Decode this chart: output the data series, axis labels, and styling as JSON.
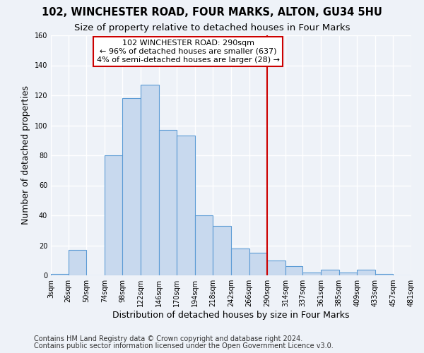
{
  "title1": "102, WINCHESTER ROAD, FOUR MARKS, ALTON, GU34 5HU",
  "title2": "Size of property relative to detached houses in Four Marks",
  "xlabel": "Distribution of detached houses by size in Four Marks",
  "ylabel": "Number of detached properties",
  "footer1": "Contains HM Land Registry data © Crown copyright and database right 2024.",
  "footer2": "Contains public sector information licensed under the Open Government Licence v3.0.",
  "bin_edges": [
    3,
    26,
    50,
    74,
    98,
    122,
    146,
    170,
    194,
    218,
    242,
    266,
    290,
    314,
    337,
    361,
    385,
    409,
    433,
    457,
    481
  ],
  "counts": [
    1,
    17,
    0,
    80,
    118,
    127,
    97,
    93,
    40,
    33,
    18,
    15,
    10,
    6,
    2,
    4,
    2,
    4,
    1,
    0
  ],
  "bar_facecolor": "#c8d9ee",
  "bar_edgecolor": "#5b9bd5",
  "vline_x": 290,
  "vline_color": "#cc0000",
  "annotation_title": "102 WINCHESTER ROAD: 290sqm",
  "annotation_line1": "← 96% of detached houses are smaller (637)",
  "annotation_line2": "4% of semi-detached houses are larger (28) →",
  "annotation_box_edgecolor": "#cc0000",
  "annotation_box_facecolor": "#ffffff",
  "xlim": [
    3,
    481
  ],
  "ylim": [
    0,
    160
  ],
  "yticks": [
    0,
    20,
    40,
    60,
    80,
    100,
    120,
    140,
    160
  ],
  "xtick_labels": [
    "3sqm",
    "26sqm",
    "50sqm",
    "74sqm",
    "98sqm",
    "122sqm",
    "146sqm",
    "170sqm",
    "194sqm",
    "218sqm",
    "242sqm",
    "266sqm",
    "290sqm",
    "314sqm",
    "337sqm",
    "361sqm",
    "385sqm",
    "409sqm",
    "433sqm",
    "457sqm",
    "481sqm"
  ],
  "background_color": "#eef2f8",
  "grid_color": "#ffffff",
  "title_fontsize": 10.5,
  "subtitle_fontsize": 9.5,
  "axis_label_fontsize": 9,
  "tick_fontsize": 7,
  "footer_fontsize": 7,
  "annotation_fontsize": 8
}
